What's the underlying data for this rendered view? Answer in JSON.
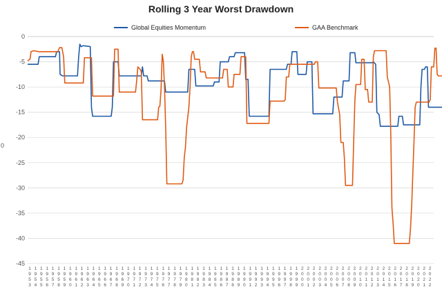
{
  "chart_data": {
    "type": "line",
    "title": "Rolling 3 Year Worst Drawdown",
    "xlabel": "",
    "ylabel": "0",
    "ylim": [
      -45,
      0
    ],
    "yticks": [
      0,
      -5,
      -10,
      -15,
      -20,
      -25,
      -30,
      -35,
      -40,
      -45
    ],
    "grid": "horizontal",
    "legend_position": "top",
    "x": [
      "1953",
      "1954",
      "1955",
      "1956",
      "1957",
      "1958",
      "1959",
      "1960",
      "1961",
      "1962",
      "1963",
      "1964",
      "1965",
      "1966",
      "1967",
      "1968",
      "1969",
      "1970",
      "1971",
      "1972",
      "1973",
      "1974",
      "1975",
      "1976",
      "1977",
      "1978",
      "1979",
      "1980",
      "1981",
      "1982",
      "1983",
      "1984",
      "1985",
      "1986",
      "1987",
      "1988",
      "1989",
      "1990",
      "1991",
      "1992",
      "1993",
      "1994",
      "1995",
      "1996",
      "1997",
      "1998",
      "1999",
      "2000",
      "2001",
      "2002",
      "2003",
      "2004",
      "2005",
      "2006",
      "2007",
      "2008",
      "2009",
      "2010",
      "2011",
      "2012",
      "2013",
      "2014",
      "2015",
      "2016",
      "2017",
      "2018",
      "2019",
      "2020",
      "2021",
      "2022"
    ],
    "series": [
      {
        "name": "Global Equities Momentum",
        "color": "#1f5aa6",
        "points": [
          [
            1953.0,
            -5.5
          ],
          [
            1954.8,
            -5.5
          ],
          [
            1955.0,
            -4.0
          ],
          [
            1957.8,
            -4.0
          ],
          [
            1958.0,
            -3.0
          ],
          [
            1958.5,
            -3.0
          ],
          [
            1958.6,
            -7.5
          ],
          [
            1959.0,
            -7.8
          ],
          [
            1961.6,
            -7.8
          ],
          [
            1961.8,
            -4.0
          ],
          [
            1962.0,
            -1.5
          ],
          [
            1962.2,
            -2.0
          ],
          [
            1962.6,
            -1.8
          ],
          [
            1963.8,
            -2.0
          ],
          [
            1964.0,
            -14.0
          ],
          [
            1964.2,
            -15.8
          ],
          [
            1967.4,
            -15.8
          ],
          [
            1967.6,
            -14.0
          ],
          [
            1967.8,
            -5.0
          ],
          [
            1968.6,
            -5.0
          ],
          [
            1968.8,
            -7.8
          ],
          [
            1972.6,
            -7.8
          ],
          [
            1972.8,
            -6.0
          ],
          [
            1973.0,
            -7.8
          ],
          [
            1973.6,
            -7.8
          ],
          [
            1973.8,
            -8.8
          ],
          [
            1976.6,
            -8.8
          ],
          [
            1976.8,
            -11.0
          ],
          [
            1980.6,
            -11.0
          ],
          [
            1980.8,
            -6.5
          ],
          [
            1981.8,
            -6.5
          ],
          [
            1982.0,
            -9.8
          ],
          [
            1985.0,
            -9.8
          ],
          [
            1985.2,
            -9.0
          ],
          [
            1986.0,
            -9.0
          ],
          [
            1986.2,
            -5.0
          ],
          [
            1987.6,
            -5.0
          ],
          [
            1987.8,
            -4.0
          ],
          [
            1988.6,
            -4.0
          ],
          [
            1988.8,
            -3.2
          ],
          [
            1990.4,
            -3.2
          ],
          [
            1990.6,
            -8.5
          ],
          [
            1991.0,
            -8.5
          ],
          [
            1991.2,
            -15.8
          ],
          [
            1994.6,
            -15.8
          ],
          [
            1994.8,
            -6.5
          ],
          [
            1997.6,
            -6.5
          ],
          [
            1997.8,
            -5.5
          ],
          [
            1998.4,
            -5.5
          ],
          [
            1998.6,
            -3.0
          ],
          [
            1999.4,
            -3.0
          ],
          [
            1999.6,
            -7.5
          ],
          [
            2001.0,
            -7.5
          ],
          [
            2001.2,
            -5.0
          ],
          [
            2002.0,
            -5.0
          ],
          [
            2002.2,
            -15.3
          ],
          [
            2005.6,
            -15.3
          ],
          [
            2005.8,
            -12.0
          ],
          [
            2007.2,
            -12.0
          ],
          [
            2007.4,
            -8.8
          ],
          [
            2008.4,
            -8.8
          ],
          [
            2008.6,
            -3.2
          ],
          [
            2009.4,
            -3.2
          ],
          [
            2009.6,
            -5.2
          ],
          [
            2012.4,
            -5.2
          ],
          [
            2012.6,
            -5.0
          ],
          [
            2013.0,
            -5.5
          ],
          [
            2013.2,
            -15.0
          ],
          [
            2013.6,
            -15.5
          ],
          [
            2013.8,
            -17.8
          ],
          [
            2016.8,
            -17.8
          ],
          [
            2017.0,
            -15.8
          ],
          [
            2017.6,
            -15.8
          ],
          [
            2017.8,
            -17.5
          ],
          [
            2020.6,
            -17.5
          ],
          [
            2020.8,
            -10.0
          ],
          [
            2021.0,
            -6.5
          ],
          [
            2021.4,
            -6.5
          ],
          [
            2021.6,
            -6.0
          ],
          [
            2021.9,
            -6.0
          ],
          [
            2022.1,
            -14.0
          ],
          [
            2024.6,
            -14.0
          ]
        ]
      },
      {
        "name": "GAA Benchmark",
        "color": "#e05a14",
        "points": [
          [
            1953.0,
            -4.8
          ],
          [
            1953.4,
            -4.5
          ],
          [
            1953.6,
            -3.0
          ],
          [
            1954.0,
            -2.8
          ],
          [
            1955.0,
            -3.0
          ],
          [
            1958.2,
            -3.0
          ],
          [
            1958.5,
            -2.2
          ],
          [
            1958.9,
            -2.2
          ],
          [
            1959.2,
            -4.0
          ],
          [
            1959.4,
            -9.2
          ],
          [
            1962.6,
            -9.2
          ],
          [
            1962.8,
            -4.2
          ],
          [
            1964.0,
            -4.2
          ],
          [
            1964.2,
            -11.8
          ],
          [
            1967.8,
            -11.8
          ],
          [
            1968.0,
            -2.5
          ],
          [
            1968.6,
            -2.5
          ],
          [
            1968.8,
            -11.0
          ],
          [
            1971.6,
            -11.0
          ],
          [
            1971.8,
            -8.8
          ],
          [
            1972.0,
            -6.0
          ],
          [
            1972.4,
            -6.5
          ],
          [
            1972.6,
            -7.0
          ],
          [
            1972.8,
            -16.5
          ],
          [
            1975.4,
            -16.5
          ],
          [
            1975.6,
            -14.0
          ],
          [
            1975.8,
            -13.8
          ],
          [
            1976.0,
            -10.5
          ],
          [
            1976.2,
            -3.5
          ],
          [
            1976.4,
            -5.0
          ],
          [
            1976.6,
            -10.0
          ],
          [
            1976.8,
            -18.0
          ],
          [
            1977.0,
            -29.2
          ],
          [
            1979.6,
            -29.2
          ],
          [
            1979.8,
            -28.5
          ],
          [
            1980.0,
            -24.0
          ],
          [
            1980.2,
            -22.0
          ],
          [
            1980.4,
            -18.0
          ],
          [
            1980.8,
            -14.0
          ],
          [
            1981.0,
            -10.0
          ],
          [
            1981.2,
            -4.0
          ],
          [
            1981.4,
            -3.0
          ],
          [
            1981.6,
            -3.0
          ],
          [
            1981.8,
            -4.5
          ],
          [
            1982.6,
            -4.5
          ],
          [
            1982.8,
            -7.0
          ],
          [
            1983.6,
            -7.0
          ],
          [
            1983.8,
            -8.2
          ],
          [
            1986.6,
            -8.2
          ],
          [
            1986.8,
            -6.5
          ],
          [
            1987.4,
            -6.5
          ],
          [
            1987.6,
            -10.0
          ],
          [
            1988.4,
            -10.0
          ],
          [
            1988.6,
            -7.5
          ],
          [
            1989.6,
            -7.5
          ],
          [
            1989.8,
            -4.0
          ],
          [
            1990.6,
            -4.0
          ],
          [
            1990.8,
            -17.2
          ],
          [
            1994.6,
            -17.2
          ],
          [
            1994.8,
            -12.8
          ],
          [
            1997.2,
            -12.8
          ],
          [
            1997.4,
            -12.5
          ],
          [
            1997.6,
            -8.0
          ],
          [
            1998.0,
            -8.0
          ],
          [
            1998.2,
            -5.5
          ],
          [
            2002.4,
            -5.5
          ],
          [
            2002.6,
            -5.0
          ],
          [
            2003.0,
            -5.0
          ],
          [
            2003.2,
            -10.2
          ],
          [
            2006.2,
            -10.2
          ],
          [
            2006.4,
            -13.0
          ],
          [
            2006.8,
            -15.5
          ],
          [
            2007.0,
            -21.0
          ],
          [
            2007.4,
            -21.0
          ],
          [
            2007.6,
            -24.0
          ],
          [
            2007.8,
            -29.5
          ],
          [
            2009.0,
            -29.5
          ],
          [
            2009.2,
            -21.0
          ],
          [
            2009.4,
            -12.8
          ],
          [
            2009.6,
            -9.5
          ],
          [
            2010.4,
            -9.5
          ],
          [
            2010.6,
            -4.5
          ],
          [
            2011.0,
            -4.5
          ],
          [
            2011.2,
            -10.5
          ],
          [
            2011.6,
            -10.5
          ],
          [
            2011.8,
            -13.0
          ],
          [
            2012.4,
            -13.0
          ],
          [
            2012.6,
            -4.0
          ],
          [
            2012.8,
            -2.8
          ],
          [
            2014.8,
            -2.8
          ],
          [
            2015.0,
            -8.0
          ],
          [
            2015.4,
            -10.0
          ],
          [
            2015.6,
            -19.0
          ],
          [
            2015.8,
            -34.0
          ],
          [
            2016.0,
            -37.0
          ],
          [
            2016.2,
            -41.0
          ],
          [
            2018.8,
            -41.0
          ],
          [
            2019.0,
            -38.0
          ],
          [
            2019.2,
            -33.5
          ],
          [
            2019.4,
            -27.0
          ],
          [
            2019.6,
            -21.0
          ],
          [
            2019.8,
            -14.0
          ],
          [
            2020.0,
            -13.0
          ],
          [
            2022.2,
            -13.0
          ],
          [
            2022.4,
            -12.5
          ],
          [
            2022.6,
            -6.0
          ],
          [
            2023.0,
            -6.0
          ],
          [
            2023.2,
            -2.3
          ],
          [
            2023.4,
            -2.3
          ],
          [
            2023.6,
            -7.5
          ],
          [
            2023.8,
            -7.8
          ],
          [
            2026.5,
            -7.8
          ]
        ]
      }
    ]
  }
}
